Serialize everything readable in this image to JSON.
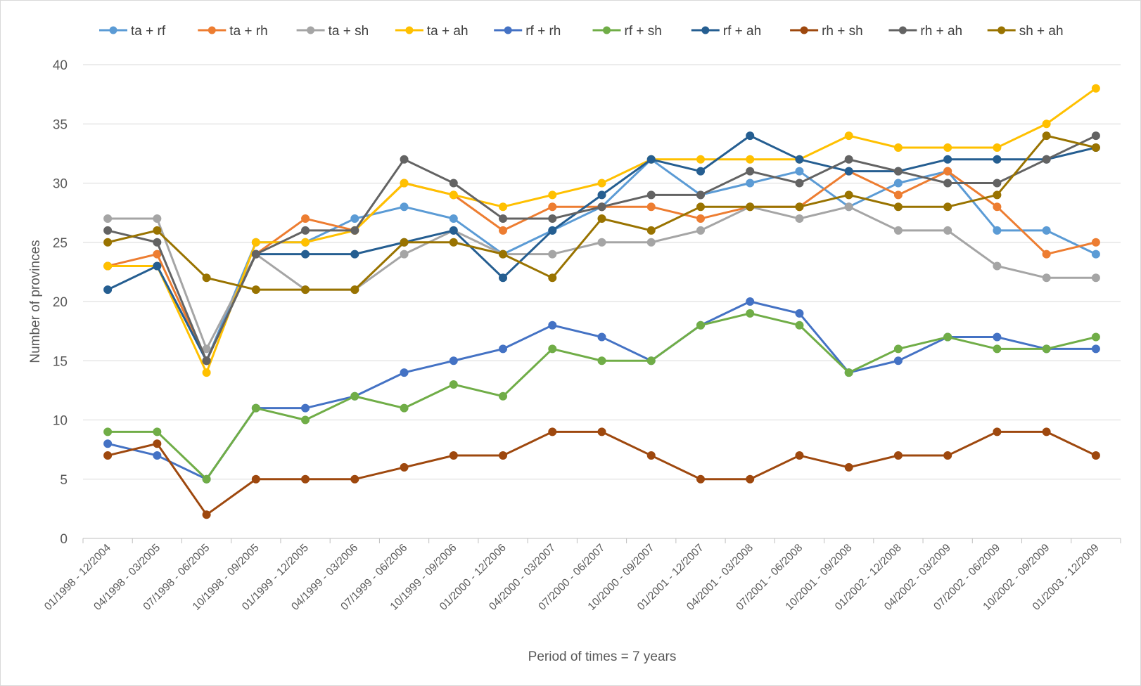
{
  "chart_data": {
    "type": "line",
    "xlabel": "Period of times = 7 years",
    "ylabel": "Number of provinces",
    "ylim": [
      0,
      40
    ],
    "yticks": [
      0,
      5,
      10,
      15,
      20,
      25,
      30,
      35,
      40
    ],
    "grid": "horizontal",
    "legend_position": "top",
    "categories": [
      "01/1998 - 12/2004",
      "04/1998 - 03/2005",
      "07/1998 - 06/2005",
      "10/1998 - 09/2005",
      "01/1999 - 12/2005",
      "04/1999 - 03/2006",
      "07/1999 - 06/2006",
      "10/1999 - 09/2006",
      "01/2000 - 12/2006",
      "04/2000 - 03/2007",
      "07/2000 - 06/2007",
      "10/2000 - 09/2007",
      "01/2001 - 12/2007",
      "04/2001 - 03/2008",
      "07/2001 - 06/2008",
      "10/2001 - 09/2008",
      "01/2002 - 12/2008",
      "04/2002 - 03/2009",
      "07/2002 - 06/2009",
      "10/2002 - 09/2009",
      "01/2003 - 12/2009"
    ],
    "series": [
      {
        "name": "ta + rf",
        "color": "#5B9BD5",
        "values": [
          23,
          23,
          15,
          25,
          25,
          27,
          28,
          27,
          24,
          26,
          28,
          32,
          29,
          30,
          31,
          28,
          30,
          31,
          26,
          26,
          24
        ]
      },
      {
        "name": "ta + rh",
        "color": "#ED7D31",
        "values": [
          23,
          24,
          15,
          24,
          27,
          26,
          30,
          29,
          26,
          28,
          28,
          28,
          27,
          28,
          28,
          31,
          29,
          31,
          28,
          24,
          25
        ]
      },
      {
        "name": "ta + sh",
        "color": "#A5A5A5",
        "values": [
          27,
          27,
          16,
          24,
          21,
          21,
          24,
          26,
          24,
          24,
          25,
          25,
          26,
          28,
          27,
          28,
          26,
          26,
          23,
          22,
          22
        ]
      },
      {
        "name": "ta + ah",
        "color": "#FFC000",
        "values": [
          23,
          23,
          14,
          25,
          25,
          26,
          30,
          29,
          28,
          29,
          30,
          32,
          32,
          32,
          32,
          34,
          33,
          33,
          33,
          35,
          38
        ]
      },
      {
        "name": "rf + rh",
        "color": "#4472C4",
        "values": [
          8,
          7,
          5,
          11,
          11,
          12,
          14,
          15,
          16,
          18,
          17,
          15,
          18,
          20,
          19,
          14,
          15,
          17,
          17,
          16,
          16
        ]
      },
      {
        "name": "rf + sh",
        "color": "#70AD47",
        "values": [
          9,
          9,
          5,
          11,
          10,
          12,
          11,
          13,
          12,
          16,
          15,
          15,
          18,
          19,
          18,
          14,
          16,
          17,
          16,
          16,
          17
        ]
      },
      {
        "name": "rf + ah",
        "color": "#255E91",
        "values": [
          21,
          23,
          15,
          24,
          24,
          24,
          25,
          26,
          22,
          26,
          29,
          32,
          31,
          34,
          32,
          31,
          31,
          32,
          32,
          32,
          33
        ]
      },
      {
        "name": "rh + sh",
        "color": "#9E480E",
        "values": [
          7,
          8,
          2,
          5,
          5,
          5,
          6,
          7,
          7,
          9,
          9,
          7,
          5,
          5,
          7,
          6,
          7,
          7,
          9,
          9,
          7
        ]
      },
      {
        "name": "rh + ah",
        "color": "#636363",
        "values": [
          26,
          25,
          15,
          24,
          26,
          26,
          32,
          30,
          27,
          27,
          28,
          29,
          29,
          31,
          30,
          32,
          31,
          30,
          30,
          32,
          34
        ]
      },
      {
        "name": "sh + ah",
        "color": "#997300",
        "values": [
          25,
          26,
          22,
          21,
          21,
          21,
          25,
          25,
          24,
          22,
          27,
          26,
          28,
          28,
          28,
          29,
          28,
          28,
          29,
          34,
          33
        ]
      }
    ]
  }
}
